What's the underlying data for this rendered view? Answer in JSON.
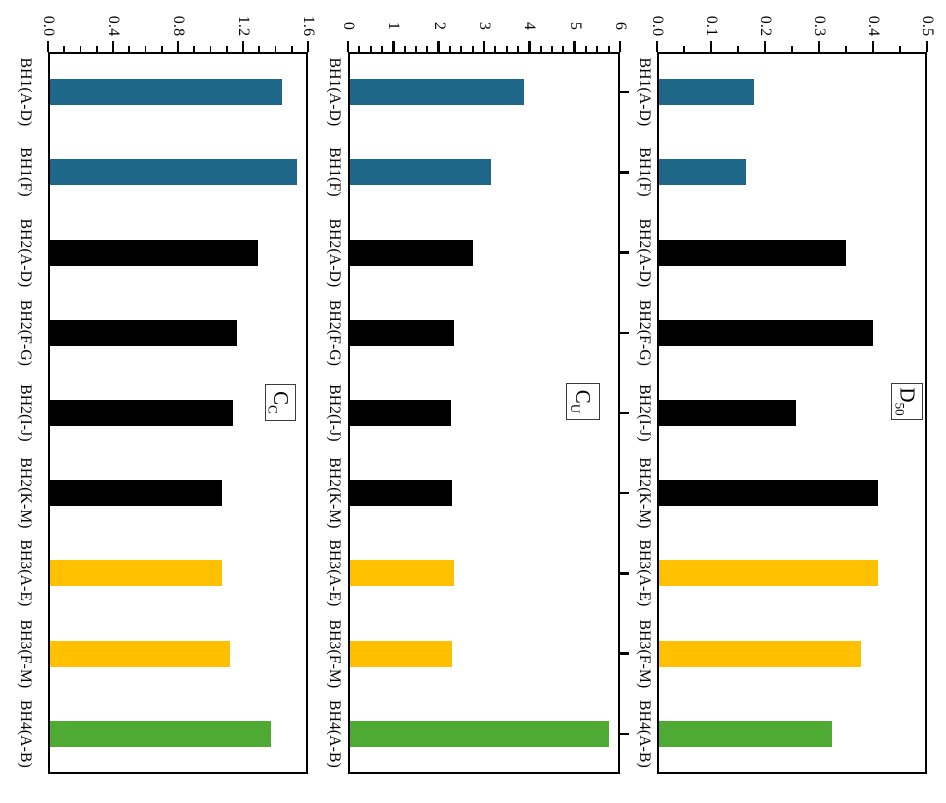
{
  "figure": {
    "background": "#ffffff",
    "text_color": "#000000",
    "rotation": "90deg-clockwise",
    "description": "Three bar charts (Cc, Cu, D50) for borehole soil samples, figure rotated 90 degrees clockwise"
  },
  "bar_colors": {
    "BH1": "#1e6788",
    "BH2": "#000000",
    "BH3": "#ffc000",
    "BH4": "#4faa33"
  },
  "chart_data": [
    {
      "type": "bar",
      "title": "Cc",
      "title_main": "C",
      "title_sub": "C",
      "categories": [
        "BH1(A-D)",
        "BH1(F)",
        "BH2(A-D)",
        "BH2(F-G)",
        "BH2(I-J)",
        "BH2(K-M)",
        "BH3(A-E)",
        "BH3(F-M)",
        "BH4(A-B)"
      ],
      "values": [
        1.44,
        1.53,
        1.29,
        1.16,
        1.14,
        1.07,
        1.07,
        1.12,
        1.37
      ],
      "bar_colors": [
        "#1e6788",
        "#1e6788",
        "#000000",
        "#000000",
        "#000000",
        "#000000",
        "#ffc000",
        "#ffc000",
        "#4faa33"
      ],
      "axis": {
        "min": 0.0,
        "max": 1.6,
        "major_step": 0.4,
        "minor_step": 0.1,
        "tick_labels": [
          "0.0",
          "0.4",
          "0.8",
          "1.2",
          "1.6"
        ]
      },
      "grid": false,
      "legend": "none"
    },
    {
      "type": "bar",
      "title": "Cu",
      "title_main": "C",
      "title_sub": "U",
      "categories": [
        "BH1(A-D)",
        "BH1(F)",
        "BH2(A-D)",
        "BH2(F-G)",
        "BH2(I-J)",
        "BH2(K-M)",
        "BH3(A-E)",
        "BH3(F-M)",
        "BH4(A-B)"
      ],
      "values": [
        3.88,
        3.15,
        2.75,
        2.33,
        2.27,
        2.3,
        2.33,
        2.3,
        5.75
      ],
      "bar_colors": [
        "#1e6788",
        "#1e6788",
        "#000000",
        "#000000",
        "#000000",
        "#000000",
        "#ffc000",
        "#ffc000",
        "#4faa33"
      ],
      "axis": {
        "min": 0,
        "max": 6,
        "major_step": 1,
        "minor_step": 0.25,
        "tick_labels": [
          "0",
          "1",
          "2",
          "3",
          "4",
          "5",
          "6"
        ]
      },
      "grid": false,
      "legend": "none"
    },
    {
      "type": "bar",
      "title": "D50",
      "title_main": "D",
      "title_sub": "50",
      "categories": [
        "BH1(A-D)",
        "BH1(F)",
        "BH2(A-D)",
        "BH2(F-G)",
        "BH2(I-J)",
        "BH2(K-M)",
        "BH3(A-E)",
        "BH3(F-M)",
        "BH4(A-B)"
      ],
      "values": [
        0.18,
        0.165,
        0.35,
        0.4,
        0.257,
        0.41,
        0.41,
        0.378,
        0.324
      ],
      "bar_colors": [
        "#1e6788",
        "#1e6788",
        "#000000",
        "#000000",
        "#000000",
        "#000000",
        "#ffc000",
        "#ffc000",
        "#4faa33"
      ],
      "axis": {
        "min": 0.0,
        "max": 0.5,
        "major_step": 0.1,
        "minor_step": 0.05,
        "tick_labels": [
          "0.0",
          "0.1",
          "0.2",
          "0.3",
          "0.4",
          "0.5"
        ]
      },
      "grid": false,
      "legend": "none"
    }
  ]
}
